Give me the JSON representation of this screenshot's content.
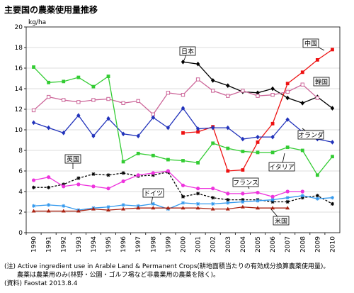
{
  "title": "主要国の農薬使用量推移",
  "notes": {
    "line1": "(注) Active ingredient use in Arable Land & Permanent Crops(耕地面積当たりの有効成分換算農薬使用量)。",
    "line2": "　　農薬は農業用のみ(林野・公園・ゴルフ場など非農業用の農薬を除く)。",
    "line3": "(資料) Faostat 2013.8.4"
  },
  "chart_data": {
    "type": "line",
    "ylabel": "kg/ha",
    "ylim": [
      0,
      20
    ],
    "yticks": [
      0,
      2,
      4,
      6,
      8,
      10,
      12,
      14,
      16,
      18,
      20
    ],
    "x": [
      "1990",
      "1991",
      "1992",
      "1993",
      "1994",
      "1995",
      "1996",
      "1997",
      "1998",
      "1999",
      "2000",
      "2001",
      "2002",
      "2003",
      "2004",
      "2005",
      "2006",
      "2007",
      "2008",
      "2009",
      "2010"
    ],
    "grid": "horizontal",
    "series": [
      {
        "name": "日本",
        "color": "#000000",
        "marker": "diamond",
        "dash": "",
        "values": [
          null,
          null,
          null,
          null,
          null,
          null,
          null,
          null,
          null,
          null,
          16.6,
          16.4,
          14.8,
          14.3,
          13.7,
          13.6,
          14.0,
          13.1,
          12.6,
          13.2,
          12.1
        ]
      },
      {
        "name": "中国",
        "color": "#ee1111",
        "marker": "square",
        "dash": "",
        "values": [
          null,
          null,
          null,
          null,
          null,
          null,
          null,
          null,
          null,
          null,
          9.7,
          9.8,
          10.3,
          6.0,
          6.1,
          8.8,
          10.6,
          14.5,
          15.6,
          16.8,
          17.8
        ]
      },
      {
        "name": "韓国",
        "color": "#cc6699",
        "marker": "square-open",
        "dash": "",
        "values": [
          11.9,
          13.2,
          12.9,
          12.7,
          12.9,
          13.0,
          12.6,
          12.8,
          11.5,
          13.6,
          13.4,
          14.9,
          13.8,
          13.3,
          13.8,
          13.3,
          13.4,
          13.7,
          14.4,
          13.1,
          null
        ]
      },
      {
        "name": "オランダ",
        "color": "#2233bb",
        "marker": "diamond",
        "dash": "",
        "values": [
          10.7,
          10.2,
          9.7,
          11.4,
          9.4,
          11.1,
          9.6,
          9.4,
          11.2,
          10.2,
          12.1,
          10.1,
          10.2,
          10.2,
          9.1,
          9.3,
          9.3,
          11.0,
          9.8,
          9.1,
          8.8
        ]
      },
      {
        "name": "イタリア",
        "color": "#33cc33",
        "marker": "square",
        "dash": "",
        "values": [
          16.1,
          14.6,
          14.7,
          15.1,
          14.2,
          15.2,
          6.9,
          7.7,
          7.5,
          7.1,
          7.0,
          6.8,
          8.7,
          8.2,
          7.9,
          7.8,
          7.8,
          8.3,
          8.0,
          5.6,
          7.4
        ]
      },
      {
        "name": "英国",
        "color": "#000000",
        "marker": "cross",
        "dash": "3,2",
        "values": [
          4.4,
          4.4,
          4.7,
          5.3,
          5.7,
          5.6,
          5.8,
          5.5,
          5.6,
          5.9,
          3.5,
          3.8,
          3.4,
          3.2,
          3.2,
          3.2,
          3.0,
          3.0,
          3.4,
          3.6,
          2.8
        ]
      },
      {
        "name": "フランス",
        "color": "#ee33dd",
        "marker": "circle",
        "dash": "",
        "values": [
          5.1,
          5.4,
          4.5,
          4.7,
          4.5,
          4.3,
          5.0,
          5.6,
          5.8,
          6.0,
          4.6,
          4.3,
          4.3,
          3.8,
          3.8,
          3.9,
          3.5,
          4.0,
          4.0,
          null,
          null
        ]
      },
      {
        "name": "ドイツ",
        "color": "#3399ee",
        "marker": "cross",
        "dash": "",
        "values": [
          2.6,
          2.7,
          2.6,
          2.2,
          2.4,
          2.5,
          2.7,
          2.6,
          2.8,
          2.3,
          2.9,
          2.8,
          2.8,
          2.9,
          3.0,
          3.1,
          3.2,
          3.4,
          3.6,
          3.3,
          3.4
        ]
      },
      {
        "name": "米国",
        "color": "#aa2211",
        "marker": "triangle",
        "dash": "",
        "values": [
          2.1,
          2.1,
          2.1,
          2.1,
          2.3,
          2.2,
          2.3,
          2.4,
          2.4,
          2.4,
          2.4,
          2.4,
          2.3,
          2.3,
          2.5,
          2.4,
          2.4,
          2.4,
          null,
          null,
          null
        ]
      }
    ]
  }
}
